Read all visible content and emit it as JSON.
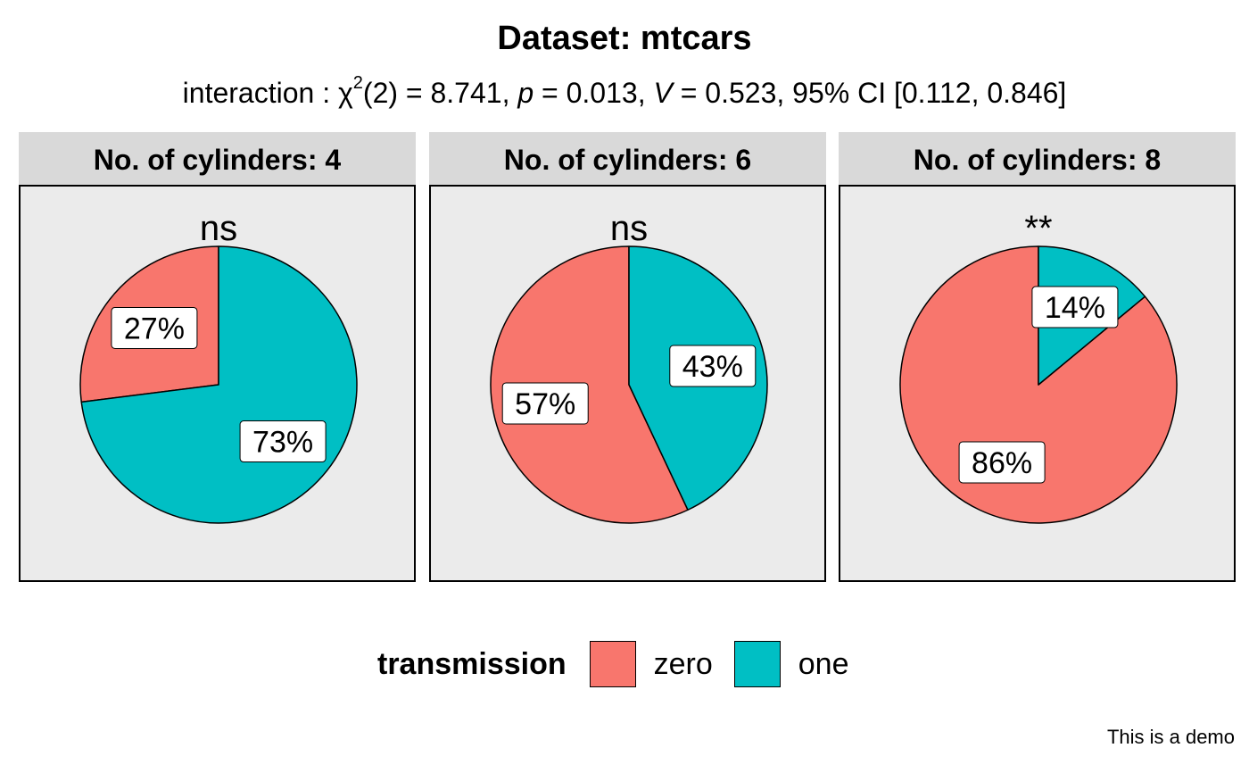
{
  "chart_data": {
    "type": "pie",
    "title": "Dataset: mtcars",
    "subtitle": {
      "prefix": "interaction : ",
      "chi": "χ",
      "sup": "2",
      "df": "(2) = 8.741, ",
      "p_sym": "p",
      "p_val": " = 0.013, ",
      "v_sym": "V",
      "v_val": " = 0.523, 95% CI [0.112, 0.846]"
    },
    "legend": {
      "title": "transmission",
      "position": "bottom",
      "items": [
        {
          "label": "zero",
          "color": "#F8766D"
        },
        {
          "label": "one",
          "color": "#00BFC4"
        }
      ]
    },
    "caption": "This is a demo",
    "panels": [
      {
        "strip": "No. of cylinders: 4",
        "annotation": "ns",
        "slices": [
          {
            "category": "zero",
            "value": 27,
            "label": "27%",
            "color": "#F8766D"
          },
          {
            "category": "one",
            "value": 73,
            "label": "73%",
            "color": "#00BFC4"
          }
        ]
      },
      {
        "strip": "No. of cylinders: 6",
        "annotation": "ns",
        "slices": [
          {
            "category": "zero",
            "value": 57,
            "label": "57%",
            "color": "#F8766D"
          },
          {
            "category": "one",
            "value": 43,
            "label": "43%",
            "color": "#00BFC4"
          }
        ]
      },
      {
        "strip": "No. of cylinders: 8",
        "annotation": "**",
        "slices": [
          {
            "category": "zero",
            "value": 86,
            "label": "86%",
            "color": "#F8766D"
          },
          {
            "category": "one",
            "value": 14,
            "label": "14%",
            "color": "#00BFC4"
          }
        ]
      }
    ]
  }
}
